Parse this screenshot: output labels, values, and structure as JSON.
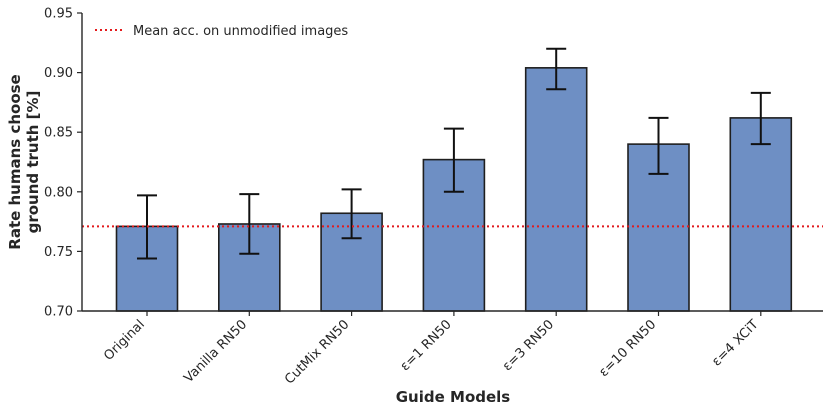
{
  "chart_data": {
    "type": "bar",
    "title": "",
    "xlabel": "Guide Models",
    "ylabel_lines": [
      "Rate humans choose",
      "ground truth [%]"
    ],
    "categories": [
      "Original",
      "Vanilla RN50",
      "CutMix RN50",
      "ε=1 RN50",
      "ε=3 RN50",
      "ε=10 RN50",
      "ε=4 XCiT"
    ],
    "values": [
      0.771,
      0.773,
      0.782,
      0.827,
      0.904,
      0.84,
      0.862
    ],
    "error_low": [
      0.744,
      0.748,
      0.761,
      0.8,
      0.886,
      0.815,
      0.84
    ],
    "error_high": [
      0.797,
      0.798,
      0.802,
      0.853,
      0.92,
      0.862,
      0.883
    ],
    "ylim": [
      0.7,
      0.95
    ],
    "yticks": [
      "0.70",
      "0.75",
      "0.80",
      "0.85",
      "0.90",
      "0.95"
    ],
    "reference_line": {
      "label": "Mean acc. on unmodified images",
      "value": 0.771
    },
    "legend_position": "top-left",
    "grid": false,
    "colors": {
      "bar": "#6e8fc4",
      "bar_edge": "#1f1f1f",
      "reference": "#e31a1c",
      "axis": "#262626"
    }
  }
}
